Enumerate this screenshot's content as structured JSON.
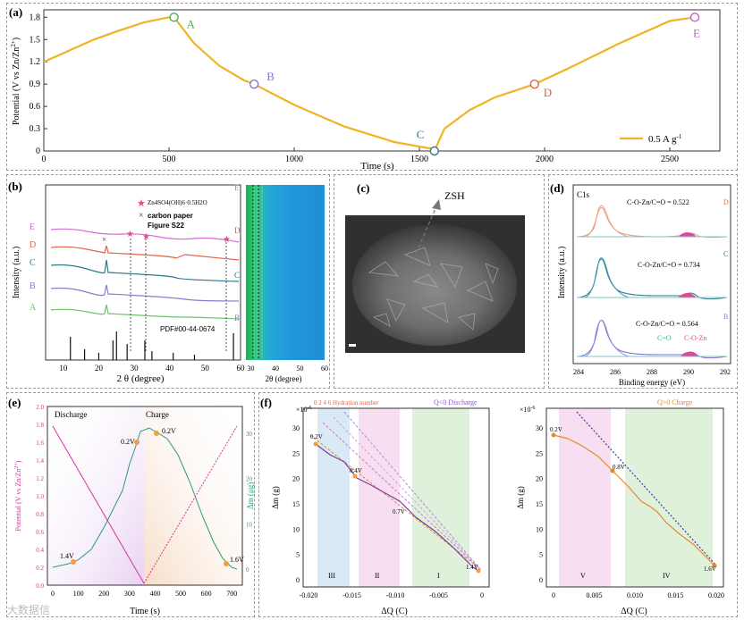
{
  "panels": {
    "a": {
      "label": "(a)",
      "xlabel": "Time (s)",
      "ylabel": "Potential (V vs Zn/Zn",
      "ylabel_sup": "2+",
      "ylabel_end": ")",
      "legend": "0.5 A g",
      "legend_sup": "-1",
      "points": [
        "A",
        "B",
        "C",
        "D",
        "E"
      ],
      "xticks": [
        "0",
        "500",
        "1000",
        "1500",
        "2000",
        "2500"
      ],
      "yticks": [
        "0",
        "0.3",
        "0.6",
        "0.9",
        "1.2",
        "1.5",
        "1.8"
      ]
    },
    "b": {
      "label": "(b)",
      "legend_zsh": "Zn",
      "legend_zsh_full": "Zn4SO4(OH)6·0.5H2O",
      "legend_cp": "carbon paper",
      "legend_fig": "Figure S22",
      "curves": [
        "E",
        "D",
        "C",
        "B",
        "A"
      ],
      "pdf": "PDF#00-44-0674",
      "xlabel": "2 θ (degree)",
      "ylabel": "Intensity (a.u.)",
      "xticks": [
        "10",
        "20",
        "30",
        "40",
        "50",
        "60"
      ],
      "map_xlabel": "2θ (degree)",
      "map_xticks": [
        "30",
        "40",
        "50",
        "60"
      ],
      "map_labels": [
        "E",
        "D",
        "C",
        "B"
      ]
    },
    "c": {
      "label": "(c)",
      "zsh": "ZSH"
    },
    "d": {
      "label": "(d)",
      "title": "C1s",
      "ylabel": "Intensity (a.u.)",
      "xlabel": "Binding energy (eV)",
      "ratios": [
        "C-O-Zn/C=O = 0.522",
        "C-O-Zn/C=O = 0.734",
        "C-O-Zn/C=O = 0.564"
      ],
      "letters": [
        "D",
        "C",
        "B"
      ],
      "co_label": "C=O",
      "cozn_label": "C-O-Zn",
      "xticks": [
        "284",
        "286",
        "288",
        "290",
        "292"
      ]
    },
    "e": {
      "label": "(e)",
      "discharge": "Discharge",
      "charge": "Charge",
      "ylabel_left": "Potential (V vs Zn/Zn",
      "ylabel_left_sup": "2+",
      "ylabel_left_end": ")",
      "ylabel_right": "Δm (μg)",
      "xlabel": "Time (s)",
      "annotations": [
        "1.4V",
        "0.2V",
        "0.2V",
        "1.6V"
      ],
      "left_ticks": [
        "0.0",
        "0.2",
        "0.4",
        "0.6",
        "0.8",
        "1.0",
        "1.2",
        "1.4",
        "1.6",
        "1.8",
        "2.0"
      ],
      "right_ticks": [
        "0",
        "10",
        "20",
        "30"
      ],
      "xticks": [
        "0",
        "100",
        "200",
        "300",
        "400",
        "500",
        "600",
        "700"
      ]
    },
    "f": {
      "label": "(f)",
      "scale": "×10",
      "scale_sup": "-6",
      "hydration": "0  2  4  6 Hydration number",
      "discharge_title": "Q<0 Discharge",
      "charge_title": "Q>0 Charge",
      "ylabel": "Δm (g)",
      "xlabel": "ΔQ (C)",
      "left_annotations": [
        "0.2V",
        "0.4V",
        "0.7V",
        "1.4V"
      ],
      "right_annotations": [
        "0.2V",
        "0.8V",
        "1.6V"
      ],
      "regions_left": [
        "III",
        "II",
        "I"
      ],
      "regions_right": [
        "V",
        "IV"
      ],
      "left_xticks": [
        "-0.020",
        "-0.015",
        "-0.010",
        "-0.005",
        "0"
      ],
      "right_xticks": [
        "0",
        "0.005",
        "0.010",
        "0.015",
        "0.020"
      ],
      "yticks": [
        "0",
        "5",
        "10",
        "15",
        "20",
        "25",
        "30"
      ]
    }
  },
  "watermark": "大数据信",
  "chart_data": [
    {
      "type": "line",
      "title": "(a)",
      "xlabel": "Time (s)",
      "ylabel": "Potential (V vs Zn/Zn2+)",
      "xlim": [
        0,
        2700
      ],
      "ylim": [
        0,
        1.9
      ],
      "series": [
        {
          "name": "0.5 A g-1",
          "x": [
            0,
            100,
            200,
            300,
            400,
            500,
            520,
            600,
            700,
            800,
            840,
            1000,
            1200,
            1400,
            1550,
            1560,
            1600,
            1700,
            1800,
            1960,
            2100,
            2300,
            2500,
            2600
          ],
          "y": [
            1.2,
            1.35,
            1.5,
            1.62,
            1.73,
            1.8,
            1.8,
            1.45,
            1.15,
            0.95,
            0.9,
            0.62,
            0.33,
            0.12,
            0.03,
            0.0,
            0.3,
            0.55,
            0.72,
            0.9,
            1.12,
            1.45,
            1.75,
            1.8
          ]
        }
      ],
      "points": [
        {
          "label": "A",
          "x": 520,
          "y": 1.8
        },
        {
          "label": "B",
          "x": 840,
          "y": 0.9
        },
        {
          "label": "C",
          "x": 1560,
          "y": 0.0
        },
        {
          "label": "D",
          "x": 1960,
          "y": 0.9
        },
        {
          "label": "E",
          "x": 2600,
          "y": 1.8
        }
      ]
    },
    {
      "type": "line",
      "title": "(e)",
      "xlabel": "Time (s)",
      "xlim": [
        0,
        720
      ],
      "series": [
        {
          "name": "Potential discharge",
          "x": [
            0,
            360
          ],
          "y": [
            1.8,
            0.0
          ]
        },
        {
          "name": "Potential charge",
          "x": [
            360,
            720
          ],
          "y": [
            0.0,
            1.8
          ]
        },
        {
          "name": "Δm (μg)",
          "x": [
            0,
            90,
            150,
            250,
            330,
            360,
            420,
            500,
            600,
            680,
            720
          ],
          "y": [
            0,
            1,
            8,
            18,
            25,
            30,
            29,
            22,
            10,
            2,
            0
          ]
        }
      ]
    },
    {
      "type": "line",
      "title": "(f) Q<0 Discharge",
      "xlabel": "ΔQ (C)",
      "ylabel": "Δm (g) ×10-6",
      "xlim": [
        -0.02,
        0.001
      ],
      "ylim": [
        0,
        33
      ],
      "series": [
        {
          "name": "Δm",
          "x": [
            -0.0185,
            -0.016,
            -0.014,
            -0.012,
            -0.01,
            -0.008,
            -0.006,
            -0.004,
            -0.002,
            0
          ],
          "y": [
            26,
            22,
            19,
            17.5,
            16,
            13,
            10.5,
            7.5,
            4,
            1
          ]
        }
      ]
    },
    {
      "type": "line",
      "title": "(f) Q>0 Charge",
      "xlabel": "ΔQ (C)",
      "ylabel": "Δm (g) ×10-6",
      "xlim": [
        -0.001,
        0.02
      ],
      "ylim": [
        0,
        33
      ],
      "series": [
        {
          "name": "Δm",
          "x": [
            0,
            0.002,
            0.004,
            0.006,
            0.008,
            0.01,
            0.012,
            0.014,
            0.016,
            0.019
          ],
          "y": [
            29,
            27,
            24,
            20,
            17,
            13,
            10,
            8,
            5,
            1
          ]
        }
      ]
    }
  ]
}
